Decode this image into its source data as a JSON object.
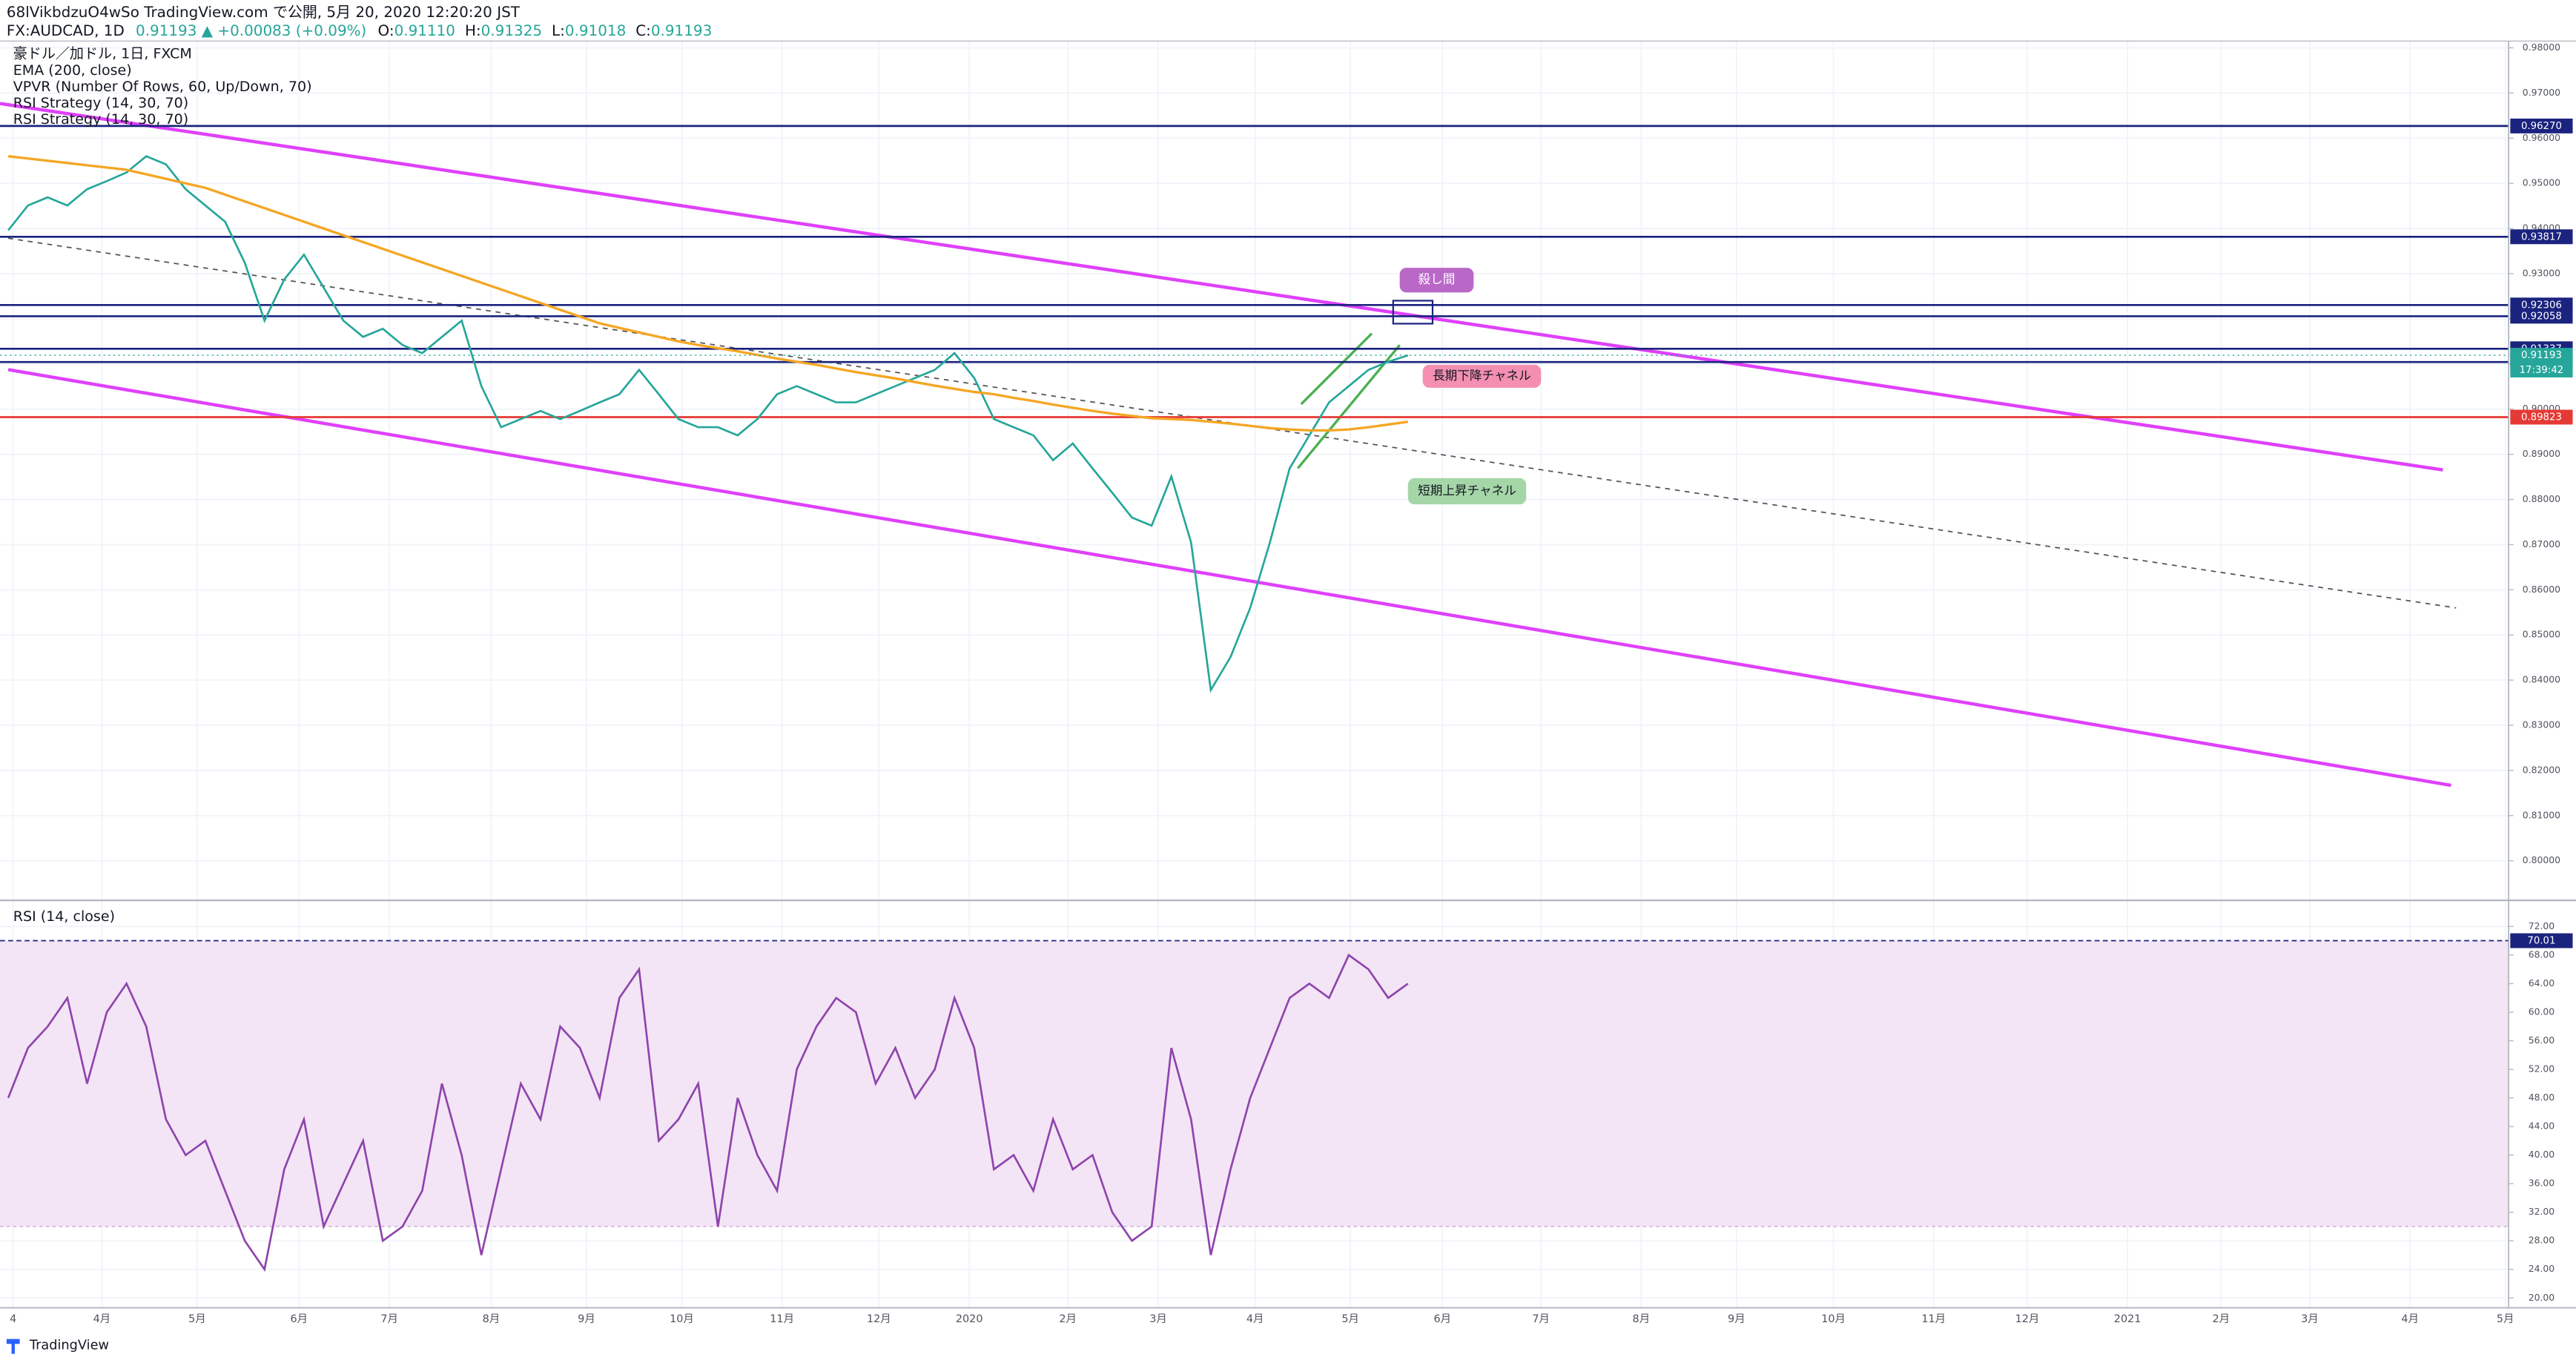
{
  "header": {
    "published": "68lVikbdzuO4wSo TradingView.com で公開, 5月 20, 2020 12:20:20 JST",
    "symbol": "FX:AUDCAD, 1D",
    "change": "0.91193 ▲ +0.00083 (+0.09%)",
    "ohlc": [
      [
        "O:",
        "0.91110"
      ],
      [
        "H:",
        "0.91325"
      ],
      [
        "L:",
        "0.91018"
      ],
      [
        "C:",
        "0.91193"
      ]
    ]
  },
  "indicators": [
    "VPVR (Number Of Rows, 60, Up/Down, 70)",
    "RSI Strategy (14, 30, 70)",
    "RSI Strategy (14, 30, 70)"
  ],
  "footer": "TradingView",
  "chart_data": [
    {
      "type": "line",
      "series": [
        {
          "name": "豪ドル／加ドル, 1日, FXCM",
          "color": "#26a69a",
          "values": [
            0.9396,
            0.9451,
            0.9469,
            0.9451,
            0.9487,
            0.9505,
            0.9524,
            0.956,
            0.9542,
            0.9487,
            0.9451,
            0.9415,
            0.9324,
            0.9196,
            0.9287,
            0.9342,
            0.9269,
            0.9196,
            0.916,
            0.9178,
            0.9142,
            0.9124,
            0.916,
            0.9196,
            0.9051,
            0.896,
            0.8978,
            0.8996,
            0.8978,
            0.8996,
            0.9015,
            0.9033,
            0.9087,
            0.9033,
            0.8978,
            0.896,
            0.896,
            0.8942,
            0.8978,
            0.9033,
            0.9051,
            0.9033,
            0.9015,
            0.9015,
            0.9033,
            0.9051,
            0.9069,
            0.9087,
            0.9124,
            0.9069,
            0.8978,
            0.896,
            0.8942,
            0.8887,
            0.8924,
            0.8869,
            0.8815,
            0.876,
            0.8742,
            0.8851,
            0.8705,
            0.8378,
            0.8451,
            0.856,
            0.8705,
            0.8869,
            0.8942,
            0.9015,
            0.9051,
            0.9087,
            0.9105,
            0.9119
          ]
        },
        {
          "name": "EMA (200, close)",
          "color": "#f5a623",
          "values": [
            0.956,
            0.9555,
            0.955,
            0.9545,
            0.954,
            0.9535,
            0.953,
            0.952,
            0.951,
            0.95,
            0.949,
            0.9475,
            0.946,
            0.9445,
            0.943,
            0.9415,
            0.94,
            0.9385,
            0.937,
            0.9355,
            0.934,
            0.9325,
            0.931,
            0.9295,
            0.928,
            0.9265,
            0.925,
            0.9235,
            0.922,
            0.9205,
            0.919,
            0.918,
            0.917,
            0.916,
            0.915,
            0.9142,
            0.9135,
            0.9128,
            0.912,
            0.9112,
            0.9105,
            0.9098,
            0.909,
            0.9082,
            0.9075,
            0.9068,
            0.906,
            0.9052,
            0.9045,
            0.9038,
            0.9033,
            0.9025,
            0.9018,
            0.901,
            0.9003,
            0.8996,
            0.899,
            0.8985,
            0.898,
            0.8978,
            0.8976,
            0.8972,
            0.8968,
            0.8963,
            0.8958,
            0.8955,
            0.8953,
            0.8953,
            0.8955,
            0.896,
            0.8966,
            0.8972
          ]
        }
      ],
      "ylim": [
        0.7916,
        0.9815
      ],
      "yticks": [
        {
          "value": 0.98,
          "label": "0.98000"
        },
        {
          "value": 0.97,
          "label": "0.97000"
        },
        {
          "value": 0.96,
          "label": "0.96000"
        },
        {
          "value": 0.95,
          "label": "0.95000"
        },
        {
          "value": 0.94,
          "label": "0.94000"
        },
        {
          "value": 0.93,
          "label": "0.93000"
        },
        {
          "value": 0.92,
          "label": "0.92000"
        },
        {
          "value": 0.91,
          "label": "0.91000"
        },
        {
          "value": 0.9,
          "label": "0.90000"
        },
        {
          "value": 0.89,
          "label": "0.89000"
        },
        {
          "value": 0.88,
          "label": "0.88000"
        },
        {
          "value": 0.87,
          "label": "0.87000"
        },
        {
          "value": 0.86,
          "label": "0.86000"
        },
        {
          "value": 0.85,
          "label": "0.85000"
        },
        {
          "value": 0.84,
          "label": "0.84000"
        },
        {
          "value": 0.83,
          "label": "0.83000"
        },
        {
          "value": 0.82,
          "label": "0.82000"
        },
        {
          "value": 0.81,
          "label": "0.81000"
        },
        {
          "value": 0.8,
          "label": "0.80000"
        }
      ],
      "grid": true,
      "levels": [
        {
          "value": 0.9627,
          "label": "0.96270",
          "color": "#1a237e"
        },
        {
          "value": 0.93817,
          "label": "0.93817",
          "color": "#1a237e"
        },
        {
          "value": 0.92306,
          "label": "0.92306",
          "color": "#1a237e"
        },
        {
          "value": 0.92058,
          "label": "0.92058",
          "color": "#1a237e"
        },
        {
          "value": 0.91337,
          "label": "0.91337",
          "color": "#1a237e"
        },
        {
          "value": 0.91043,
          "label": "0.91043",
          "color": "#1a237e"
        },
        {
          "value": 0.89823,
          "label": "0.89823",
          "color": "#e53935"
        }
      ],
      "last_price": {
        "value": 0.91193,
        "label": "0.91193",
        "countdown": "17:39:42",
        "color": "#26a69a"
      },
      "annotations": [
        {
          "text": "殺し間",
          "color": "#ba68c8",
          "text_color": "#ffffff"
        },
        {
          "text": "長期下降チャネル",
          "color": "#f48fb1",
          "text_color": "#131722"
        },
        {
          "text": "短期上昇チャネル",
          "color": "#a5d6a7",
          "text_color": "#131722"
        }
      ]
    },
    {
      "type": "line",
      "title": "RSI (14, close)",
      "color": "#8e44ad",
      "values": [
        48,
        55,
        58,
        62,
        50,
        60,
        64,
        58,
        45,
        40,
        42,
        35,
        28,
        24,
        38,
        45,
        30,
        36,
        42,
        28,
        30,
        35,
        50,
        40,
        26,
        38,
        50,
        45,
        58,
        55,
        48,
        62,
        66,
        42,
        45,
        50,
        30,
        48,
        40,
        35,
        52,
        58,
        62,
        60,
        50,
        55,
        48,
        52,
        62,
        55,
        38,
        40,
        35,
        45,
        38,
        40,
        32,
        28,
        30,
        55,
        45,
        26,
        38,
        48,
        55,
        62,
        64,
        62,
        68,
        66,
        62,
        64
      ],
      "ylim": [
        18.85,
        75.2
      ],
      "yticks": [
        {
          "value": 72,
          "label": "72.00"
        },
        {
          "value": 68,
          "label": "68.00"
        },
        {
          "value": 64,
          "label": "64.00"
        },
        {
          "value": 60,
          "label": "60.00"
        },
        {
          "value": 56,
          "label": "56.00"
        },
        {
          "value": 52,
          "label": "52.00"
        },
        {
          "value": 48,
          "label": "48.00"
        },
        {
          "value": 44,
          "label": "44.00"
        },
        {
          "value": 40,
          "label": "40.00"
        },
        {
          "value": 36,
          "label": "36.00"
        },
        {
          "value": 32,
          "label": "32.00"
        },
        {
          "value": 28,
          "label": "28.00"
        },
        {
          "value": 24,
          "label": "24.00"
        },
        {
          "value": 20,
          "label": "20.00"
        }
      ],
      "band": [
        30,
        70
      ],
      "band_color": "#f3e5f5",
      "levels": [
        {
          "value": 70.01,
          "label": "70.01",
          "color": "#1a237e"
        }
      ],
      "x_labels": [
        "4",
        "4月",
        "5月",
        "6月",
        "7月",
        "8月",
        "9月",
        "10月",
        "11月",
        "12月",
        "2020",
        "2月",
        "3月",
        "4月",
        "5月",
        "6月",
        "7月",
        "8月",
        "9月",
        "10月",
        "11月",
        "12月",
        "2021",
        "2月",
        "3月",
        "4月",
        "5月"
      ]
    }
  ]
}
